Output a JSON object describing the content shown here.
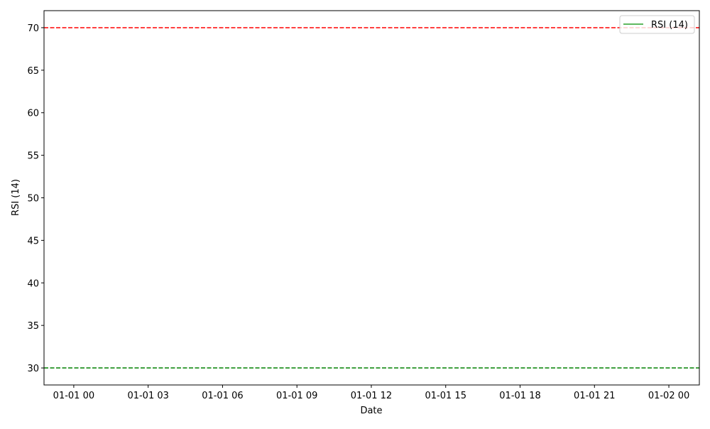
{
  "chart_data": {
    "type": "line",
    "title": "",
    "xlabel": "Date",
    "ylabel": "RSI (14)",
    "ylim": [
      28,
      72
    ],
    "xlim_hours_from": "01-01 00",
    "xlim": [
      -1.2,
      25.23
    ],
    "x_tick_labels": [
      "01-01 00",
      "01-01 03",
      "01-01 06",
      "01-01 09",
      "01-01 12",
      "01-01 15",
      "01-01 18",
      "01-01 21",
      "01-02 00"
    ],
    "x_tick_hours": [
      0,
      3,
      6,
      9,
      12,
      15,
      18,
      21,
      24
    ],
    "y_ticks": [
      30,
      35,
      40,
      45,
      50,
      55,
      60,
      65,
      70
    ],
    "series": [
      {
        "name": "RSI (14)",
        "color": "#2ca02c",
        "x": [],
        "y": []
      }
    ],
    "reference_lines": [
      {
        "y": 70,
        "color": "#ff0000",
        "style": "dashed"
      },
      {
        "y": 30,
        "color": "#008000",
        "style": "dashed"
      }
    ],
    "grid": false,
    "legend": {
      "placement": "top-right",
      "entries": [
        "RSI (14)"
      ]
    }
  }
}
